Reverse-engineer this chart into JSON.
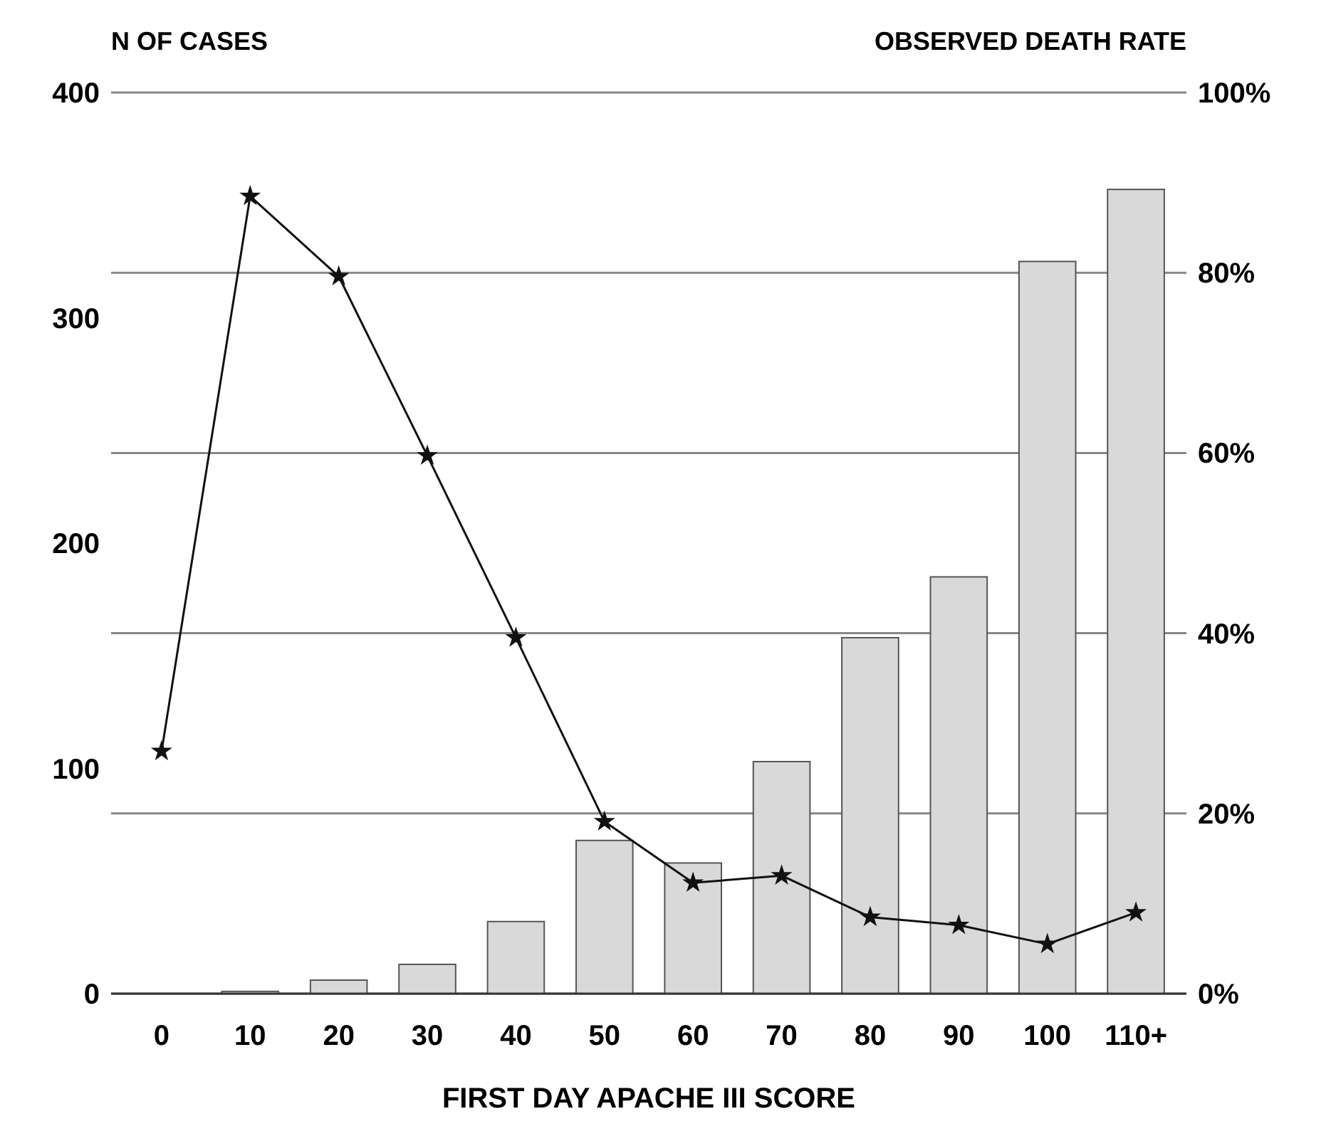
{
  "chart_data": {
    "type": "bar",
    "xlabel": "FIRST DAY APACHE III SCORE",
    "ylabel": "N OF CASES",
    "y2label": "OBSERVED DEATH RATE",
    "categories": [
      "0",
      "10",
      "20",
      "30",
      "40",
      "50",
      "60",
      "70",
      "80",
      "90",
      "100",
      "110+"
    ],
    "series": [
      {
        "color": "#d9d9d9",
        "values": [
          0,
          1,
          6,
          13,
          32,
          68,
          58,
          103,
          158,
          185,
          325,
          357
        ]
      },
      {
        "type": "line",
        "axis": "y2",
        "color": "#111111",
        "marker": "star",
        "values": [
          26.9,
          88.5,
          79.6,
          59.7,
          39.5,
          19.1,
          12.3,
          13.1,
          8.5,
          7.6,
          5.5,
          9.0
        ]
      }
    ],
    "ylim": [
      0,
      400
    ],
    "yticks": [
      0,
      100,
      200,
      300,
      400
    ],
    "y2lim": [
      0,
      100
    ],
    "y2ticks": [
      {
        "value": 0,
        "label": "0%"
      },
      {
        "value": 20,
        "label": "20%"
      },
      {
        "value": 40,
        "label": "40%"
      },
      {
        "value": 60,
        "label": "60%"
      },
      {
        "value": 80,
        "label": "80%"
      },
      {
        "value": 100,
        "label": "100%"
      }
    ],
    "grid": "y2"
  }
}
